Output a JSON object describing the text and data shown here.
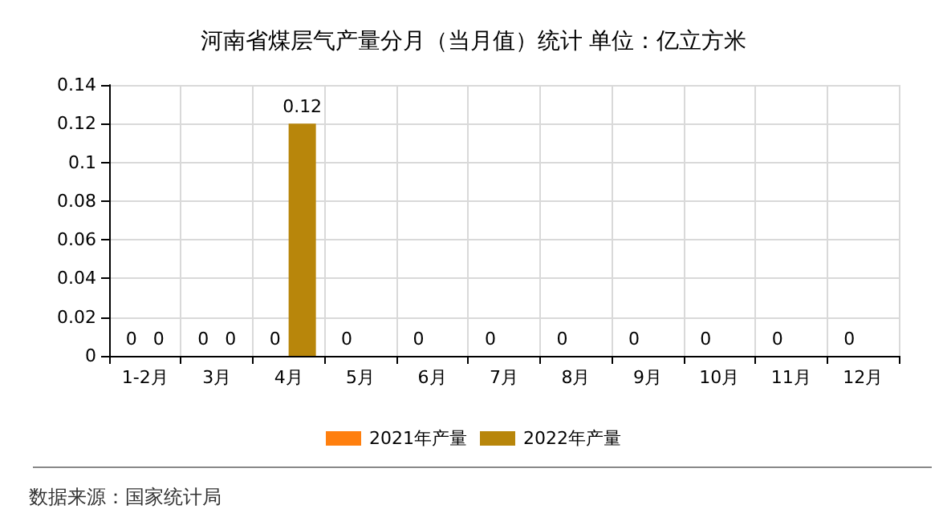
{
  "chart_data": {
    "type": "bar",
    "title": "河南省煤层气产量分月（当月值）统计 单位：亿立方米",
    "categories": [
      "1-2月",
      "3月",
      "4月",
      "5月",
      "6月",
      "7月",
      "8月",
      "9月",
      "10月",
      "11月",
      "12月"
    ],
    "series": [
      {
        "name": "2021年产量",
        "color": "#ff7f0e",
        "values": [
          0,
          0,
          0,
          0,
          0,
          0,
          0,
          0,
          0,
          0,
          0
        ]
      },
      {
        "name": "2022年产量",
        "color": "#b8860b",
        "values": [
          0,
          0,
          0.12,
          null,
          null,
          null,
          null,
          null,
          null,
          null,
          null
        ]
      }
    ],
    "ylim": [
      0,
      0.14
    ],
    "yticks": [
      0,
      0.02,
      0.04,
      0.06,
      0.08,
      0.1,
      0.12,
      0.14
    ],
    "grid": true,
    "legend": "bottom",
    "data_labels": true,
    "annotations": [
      "数据来源：国家统计局"
    ]
  }
}
